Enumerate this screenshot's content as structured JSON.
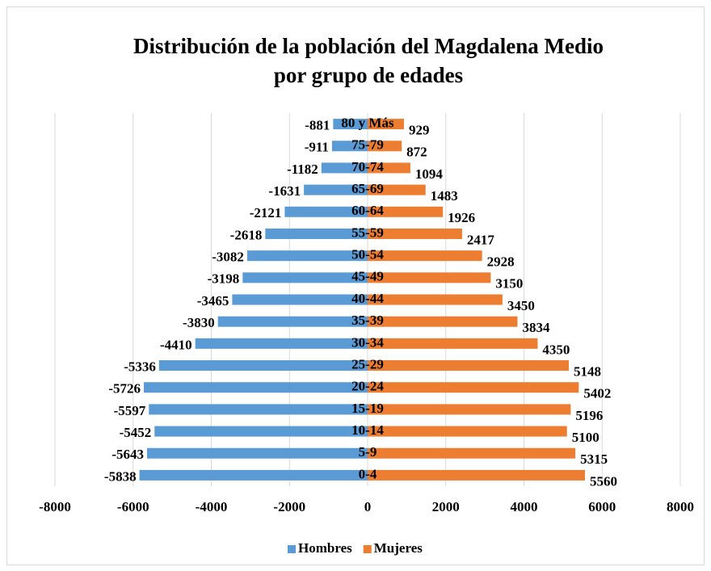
{
  "chart_data": {
    "type": "bar",
    "orientation": "horizontal",
    "title": [
      "Distribución de la población del Magdalena Medio",
      "por grupo de edades"
    ],
    "categories": [
      "0-4",
      "5-9",
      "10-14",
      "15-19",
      "20-24",
      "25-29",
      "30-34",
      "35-39",
      "40-44",
      "45-49",
      "50-54",
      "55-59",
      "60-64",
      "65-69",
      "70-74",
      "75-79",
      "80 y Más"
    ],
    "series": [
      {
        "name": "Hombres",
        "color": "#5b9bd5",
        "values": [
          -5838,
          -5643,
          -5452,
          -5597,
          -5726,
          -5336,
          -4410,
          -3830,
          -3465,
          -3198,
          -3082,
          -2618,
          -2121,
          -1631,
          -1182,
          -911,
          -881
        ]
      },
      {
        "name": "Mujeres",
        "color": "#ed7d31",
        "values": [
          5560,
          5315,
          5100,
          5196,
          5402,
          5148,
          4350,
          3834,
          3450,
          3150,
          2928,
          2417,
          1926,
          1483,
          1094,
          872,
          929
        ]
      }
    ],
    "xlim": [
      -8000,
      8000
    ],
    "xticks": [
      -8000,
      -6000,
      -4000,
      -2000,
      0,
      2000,
      4000,
      6000,
      8000
    ],
    "grid": true,
    "legend": "bottom"
  }
}
